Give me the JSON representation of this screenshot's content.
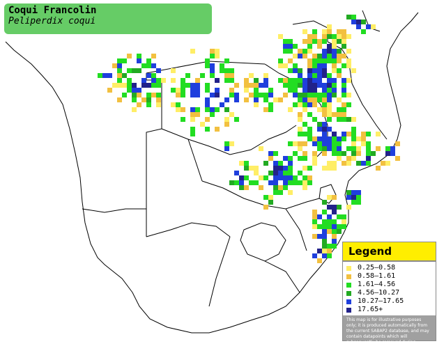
{
  "title": {
    "common_name": "Coqui Francolin",
    "scientific_name": "Peliperdix coqui"
  },
  "legend": {
    "heading": "Legend",
    "items": [
      {
        "label": "0.25–0.58",
        "color": "#ffee66"
      },
      {
        "label": "0.58–1.61",
        "color": "#f2c040"
      },
      {
        "label": "1.61–4.56",
        "color": "#22dd22"
      },
      {
        "label": "4.56–10.27",
        "color": "#22aa22"
      },
      {
        "label": "10.27–17.65",
        "color": "#1f3fdd"
      },
      {
        "label": "17.65+",
        "color": "#22228a"
      }
    ],
    "note": "This map is for illustrative purposes only; it is produced automatically from the current SABAP2 database, and may contain datapoints which will subsequently be removed during checking operations."
  }
}
